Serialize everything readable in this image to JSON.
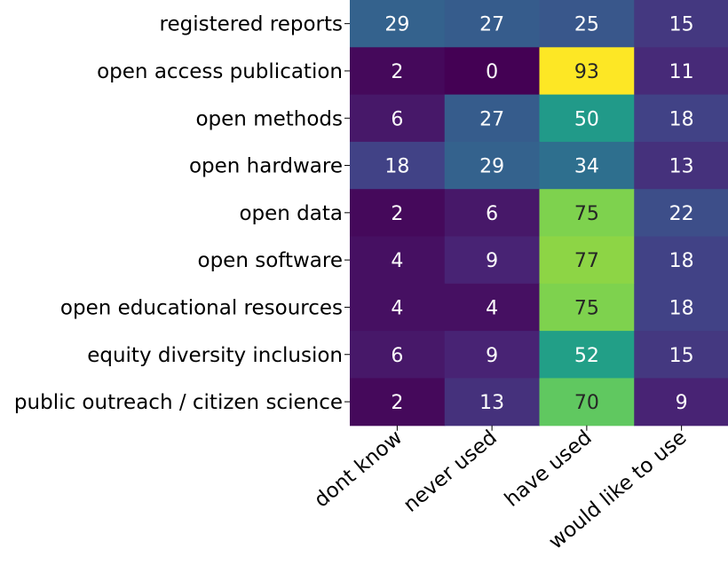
{
  "chart_data": {
    "type": "heatmap",
    "title": "",
    "xlabel": "",
    "ylabel": "",
    "rows": [
      "registered reports",
      "open access publication",
      "open methods",
      "open hardware",
      "open data",
      "open software",
      "open educational resources",
      "equity diversity inclusion",
      "public outreach / citizen science"
    ],
    "columns": [
      "dont know",
      "never used",
      "have used",
      "would like to use"
    ],
    "values": [
      [
        29,
        27,
        25,
        15
      ],
      [
        2,
        0,
        93,
        11
      ],
      [
        6,
        27,
        50,
        18
      ],
      [
        18,
        29,
        34,
        13
      ],
      [
        2,
        6,
        75,
        22
      ],
      [
        4,
        9,
        77,
        18
      ],
      [
        4,
        4,
        75,
        18
      ],
      [
        6,
        9,
        52,
        15
      ],
      [
        2,
        13,
        70,
        9
      ]
    ],
    "value_range": [
      0,
      93
    ],
    "colormap": "viridis",
    "grid": false,
    "legend": "none"
  }
}
